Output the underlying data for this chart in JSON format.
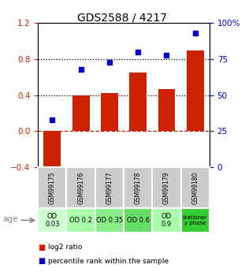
{
  "title": "GDS2588 / 4217",
  "samples": [
    "GSM99175",
    "GSM99176",
    "GSM99177",
    "GSM99178",
    "GSM99179",
    "GSM99180"
  ],
  "log2_ratio": [
    -0.45,
    0.4,
    0.42,
    0.65,
    0.47,
    0.9
  ],
  "percentile_rank": [
    33,
    68,
    73,
    80,
    78,
    93
  ],
  "bar_color": "#cc2200",
  "dot_color": "#0000cc",
  "ylim_left": [
    -0.4,
    1.2
  ],
  "ylim_right": [
    0,
    100
  ],
  "yticks_left": [
    -0.4,
    0.0,
    0.4,
    0.8,
    1.2
  ],
  "yticks_right": [
    0,
    25,
    50,
    75,
    100
  ],
  "ytick_labels_right": [
    "0",
    "25",
    "50",
    "75",
    "100%"
  ],
  "age_labels": [
    "OD\n0.03",
    "OD 0.2",
    "OD 0.35",
    "OD 0.6",
    "OD\n0.9",
    "stationar\ny phase"
  ],
  "age_colors": [
    "#ccffcc",
    "#aaffaa",
    "#88ee88",
    "#66dd66",
    "#aaffaa",
    "#33cc33"
  ],
  "sample_row_color": "#cccccc",
  "bg_color": "#ffffff"
}
